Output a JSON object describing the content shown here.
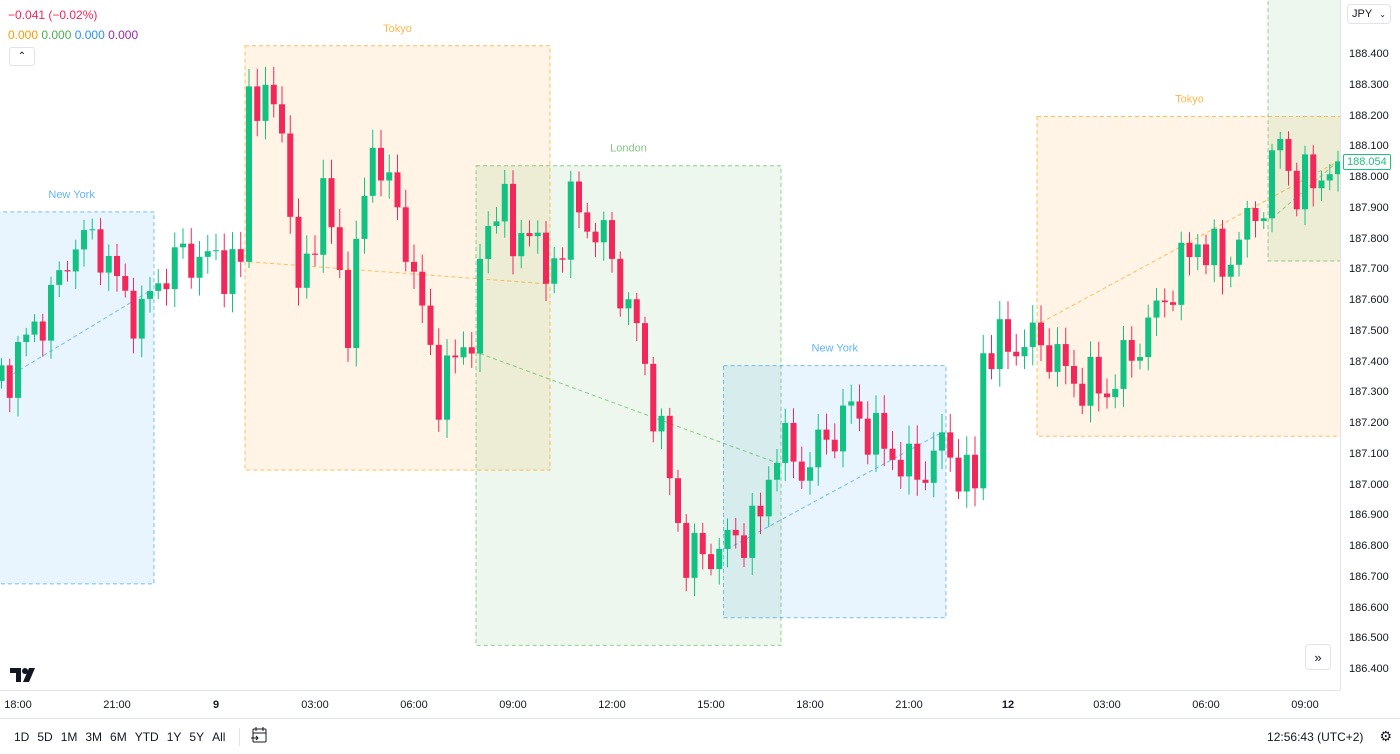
{
  "legend": {
    "change": "−0.041 (−0.02%)",
    "values": [
      "0.000",
      "0.000",
      "0.000",
      "0.000"
    ],
    "value_colors": [
      "#ff9800",
      "#4caf50",
      "#2196f3",
      "#9c27b0"
    ],
    "change_color": "#f7245a"
  },
  "currency_select": "JPY",
  "current_price": "188.054",
  "price_labels": [
    "188.400",
    "188.300",
    "188.200",
    "188.100",
    "188.000",
    "187.900",
    "187.800",
    "187.700",
    "187.600",
    "187.500",
    "187.400",
    "187.300",
    "187.200",
    "187.100",
    "187.000",
    "186.900",
    "186.800",
    "186.700",
    "186.600",
    "186.500",
    "186.400"
  ],
  "time_labels": [
    {
      "bar": 0,
      "text": "18:00"
    },
    {
      "bar": 12,
      "text": "21:00"
    },
    {
      "bar": 24,
      "text": "9",
      "bold": true
    },
    {
      "bar": 36,
      "text": "03:00"
    },
    {
      "bar": 48,
      "text": "06:00"
    },
    {
      "bar": 60,
      "text": "09:00"
    },
    {
      "bar": 72,
      "text": "12:00"
    },
    {
      "bar": 84,
      "text": "15:00"
    },
    {
      "bar": 96,
      "text": "18:00"
    },
    {
      "bar": 108,
      "text": "21:00"
    },
    {
      "bar": 120,
      "text": "12",
      "bold": true
    },
    {
      "bar": 132,
      "text": "03:00"
    },
    {
      "bar": 144,
      "text": "06:00"
    },
    {
      "bar": 156,
      "text": "09:00"
    }
  ],
  "toolbar": {
    "ranges": [
      "1D",
      "5D",
      "1M",
      "3M",
      "6M",
      "YTD",
      "1Y",
      "5Y",
      "All"
    ],
    "clock": "12:56:43 (UTC+2)"
  },
  "colors": {
    "up": "#12c283",
    "down": "#f2285a"
  },
  "chart_data": {
    "type": "candlestick",
    "bar_interval": "15m",
    "ylim": [
      186.4,
      188.4
    ],
    "price_path": [
      [
        -2,
        187.34
      ],
      [
        4,
        187.6
      ],
      [
        7,
        187.8
      ],
      [
        10,
        187.78
      ],
      [
        13,
        187.6
      ],
      [
        15,
        187.55
      ],
      [
        17,
        187.67
      ],
      [
        20,
        187.75
      ],
      [
        27,
        187.71
      ],
      [
        28,
        188.29
      ],
      [
        32,
        188.19
      ],
      [
        34,
        187.6
      ],
      [
        37,
        187.96
      ],
      [
        40,
        187.54
      ],
      [
        43,
        188.12
      ],
      [
        47,
        187.8
      ],
      [
        51,
        187.31
      ],
      [
        55,
        187.5
      ],
      [
        57,
        187.83
      ],
      [
        59,
        187.99
      ],
      [
        60,
        187.7
      ],
      [
        62,
        187.9
      ],
      [
        64,
        187.64
      ],
      [
        67,
        187.91
      ],
      [
        71,
        187.8
      ],
      [
        75,
        187.5
      ],
      [
        78,
        187.15
      ],
      [
        81,
        186.76
      ],
      [
        85,
        186.79
      ],
      [
        90,
        186.89
      ],
      [
        92,
        187.15
      ],
      [
        95,
        187.05
      ],
      [
        101,
        187.25
      ],
      [
        104,
        187.15
      ],
      [
        109,
        187.03
      ],
      [
        112,
        187.13
      ],
      [
        116,
        186.99
      ],
      [
        117,
        187.44
      ],
      [
        124,
        187.47
      ],
      [
        128,
        187.34
      ],
      [
        132,
        187.31
      ],
      [
        136,
        187.47
      ],
      [
        143,
        187.8
      ],
      [
        146,
        187.71
      ],
      [
        151,
        187.93
      ],
      [
        153,
        188.12
      ],
      [
        155,
        187.96
      ],
      [
        160,
        188.054
      ]
    ],
    "sessions": [
      {
        "name": "New York",
        "start": -3,
        "end": 16,
        "high": 187.89,
        "low": 186.68,
        "color": "#2196f3"
      },
      {
        "name": "Tokyo",
        "start": 28,
        "end": 64,
        "high": 188.43,
        "low": 187.05,
        "color": "#ff9800"
      },
      {
        "name": "London",
        "start": 56,
        "end": 92,
        "high": 188.04,
        "low": 186.48,
        "color": "#4caf50"
      },
      {
        "name": "New York",
        "start": 86,
        "end": 112,
        "high": 187.39,
        "low": 186.57,
        "color": "#2196f3"
      },
      {
        "name": "Tokyo",
        "start": 124,
        "end": 160,
        "high": 188.2,
        "low": 187.16,
        "color": "#ff9800"
      },
      {
        "name": "London",
        "start": 152,
        "end": 162,
        "high": 188.7,
        "low": 187.73,
        "color": "#4caf50",
        "nolabel": true
      }
    ]
  }
}
